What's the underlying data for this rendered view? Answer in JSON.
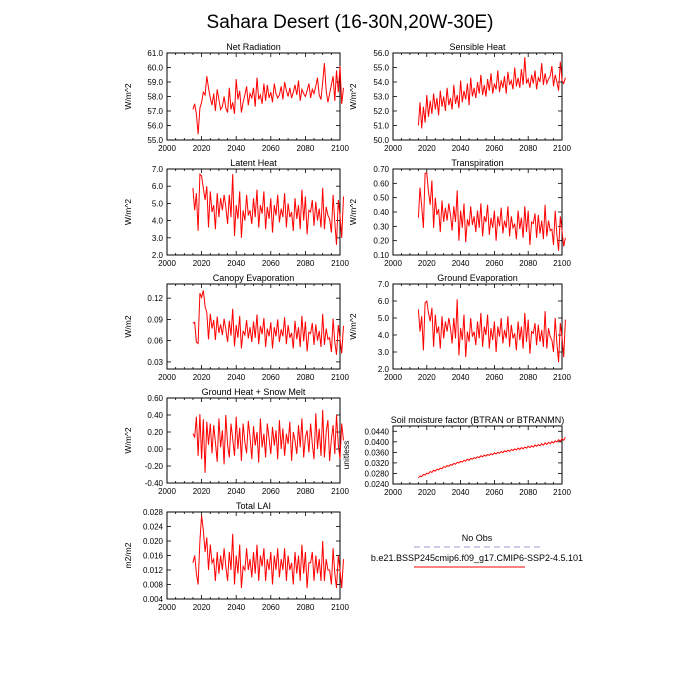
{
  "figure": {
    "title": "Sahara Desert (16-30N,20W-30E)"
  },
  "colors": {
    "series": "#ff0000",
    "obs": "#9999cc",
    "axes": "#000000"
  },
  "legend": {
    "obs_label": "No Obs",
    "model_label": "b.e21.BSSP245cmip6.f09_g17.CMIP6-SSP2-4.5.101"
  },
  "chart_data": [
    {
      "type": "line",
      "title": "Net Radiation",
      "ylabel": "W/m^2",
      "xlim": [
        2000,
        2100
      ],
      "ylim": [
        55.0,
        61.0
      ],
      "xticks": [
        "2000",
        "2020",
        "2040",
        "2060",
        "2080",
        "2100"
      ],
      "yticks": [
        "55.0",
        "56.0",
        "57.0",
        "58.0",
        "59.0",
        "60.0",
        "61.0"
      ],
      "start_year": 2015,
      "series": [
        {
          "values": [
            57.1,
            57.5,
            56.8,
            55.4,
            57.2,
            57.6,
            58.3,
            58.1,
            59.4,
            58.6,
            57.9,
            57.4,
            58.2,
            57.0,
            58.5,
            57.8,
            57.1,
            57.3,
            58.0,
            57.2,
            56.9,
            58.6,
            57.1,
            57.6,
            56.8,
            59.2,
            57.8,
            58.4,
            56.9,
            57.6,
            58.1,
            58.7,
            57.4,
            58.2,
            57.9,
            58.6,
            57.3,
            59.3,
            57.8,
            58.1,
            57.5,
            58.9,
            57.7,
            58.8,
            57.9,
            58.3,
            57.6,
            58.9,
            58.2,
            57.9,
            58.1,
            58.7,
            57.8,
            59.0,
            58.4,
            58.0,
            58.6,
            57.9,
            58.3,
            58.8,
            58.1,
            59.1,
            57.7,
            58.5,
            58.2,
            58.0,
            58.4,
            58.9,
            57.9,
            58.5,
            58.2,
            58.7,
            59.3,
            58.1,
            57.8,
            59.0,
            60.3,
            58.4,
            57.6,
            58.2,
            58.8,
            59.4,
            57.7,
            59.8,
            58.3,
            60.1,
            57.5,
            58.6
          ]
        }
      ]
    },
    {
      "type": "line",
      "title": "Sensible Heat",
      "ylabel": "W/m^2",
      "xlim": [
        2000,
        2100
      ],
      "ylim": [
        50.0,
        56.0
      ],
      "xticks": [
        "2000",
        "2020",
        "2040",
        "2060",
        "2080",
        "2100"
      ],
      "yticks": [
        "50.0",
        "51.0",
        "52.0",
        "53.0",
        "54.0",
        "55.0",
        "56.0"
      ],
      "start_year": 2015,
      "series": [
        {
          "values": [
            51.0,
            52.6,
            50.8,
            52.3,
            51.2,
            53.1,
            51.6,
            52.7,
            51.8,
            53.2,
            52.1,
            52.9,
            51.7,
            53.4,
            52.3,
            53.0,
            52.0,
            53.6,
            52.4,
            52.9,
            52.1,
            53.8,
            52.5,
            53.1,
            52.2,
            54.1,
            52.6,
            53.4,
            52.8,
            53.9,
            52.4,
            54.3,
            53.0,
            53.6,
            52.9,
            54.0,
            53.2,
            54.5,
            53.1,
            53.8,
            53.0,
            54.2,
            53.4,
            54.6,
            53.2,
            53.9,
            53.5,
            54.8,
            53.3,
            54.1,
            53.6,
            54.4,
            53.2,
            54.7,
            53.8,
            54.1,
            53.5,
            55.0,
            53.7,
            54.3,
            53.6,
            54.9,
            53.8,
            55.7,
            53.9,
            54.2,
            53.6,
            54.5,
            53.9,
            54.8,
            53.5,
            54.3,
            54.0,
            55.3,
            53.8,
            54.6,
            53.9,
            54.2,
            54.4,
            55.1,
            53.7,
            54.5,
            54.0,
            53.4,
            55.4,
            54.1,
            53.9,
            54.3
          ]
        }
      ]
    },
    {
      "type": "line",
      "title": "Latent Heat",
      "ylabel": "W/m^2",
      "xlim": [
        2000,
        2100
      ],
      "ylim": [
        2.0,
        7.0
      ],
      "xticks": [
        "2000",
        "2020",
        "2040",
        "2060",
        "2080",
        "2100"
      ],
      "yticks": [
        "2.0",
        "3.0",
        "4.0",
        "5.0",
        "6.0",
        "7.0"
      ],
      "start_year": 2015,
      "series": [
        {
          "values": [
            5.9,
            4.6,
            5.6,
            3.4,
            6.7,
            6.6,
            5.9,
            5.2,
            6.0,
            3.6,
            5.7,
            4.5,
            4.9,
            3.5,
            5.6,
            4.2,
            5.3,
            4.6,
            5.5,
            4.8,
            3.8,
            5.5,
            4.2,
            6.7,
            3.1,
            4.9,
            4.1,
            5.7,
            3.0,
            4.6,
            4.0,
            5.5,
            4.3,
            4.6,
            3.8,
            5.3,
            4.2,
            5.8,
            3.6,
            4.9,
            4.4,
            5.7,
            3.5,
            4.8,
            4.1,
            5.3,
            3.3,
            4.9,
            4.3,
            5.5,
            3.9,
            4.7,
            4.2,
            5.6,
            3.6,
            5.0,
            4.2,
            4.5,
            3.4,
            5.3,
            4.1,
            4.9,
            3.5,
            5.8,
            4.0,
            5.4,
            3.2,
            4.6,
            4.5,
            5.2,
            3.7,
            5.1,
            4.0,
            4.7,
            3.6,
            5.9,
            3.5,
            4.8,
            4.3,
            4.1,
            3.3,
            5.5,
            3.9,
            2.6,
            5.2,
            4.3,
            3.0,
            5.4
          ]
        }
      ]
    },
    {
      "type": "line",
      "title": "Transpiration",
      "ylabel": "W/m^2",
      "xlim": [
        2000,
        2100
      ],
      "ylim": [
        0.1,
        0.7
      ],
      "xticks": [
        "2000",
        "2020",
        "2040",
        "2060",
        "2080",
        "2100"
      ],
      "yticks": [
        "0.10",
        "0.20",
        "0.30",
        "0.40",
        "0.50",
        "0.60",
        "0.70"
      ],
      "start_year": 2015,
      "series": [
        {
          "values": [
            0.36,
            0.57,
            0.44,
            0.29,
            0.67,
            0.67,
            0.54,
            0.45,
            0.62,
            0.29,
            0.5,
            0.38,
            0.42,
            0.26,
            0.48,
            0.33,
            0.43,
            0.34,
            0.46,
            0.38,
            0.27,
            0.44,
            0.33,
            0.55,
            0.2,
            0.41,
            0.29,
            0.46,
            0.19,
            0.35,
            0.3,
            0.44,
            0.31,
            0.37,
            0.26,
            0.41,
            0.29,
            0.46,
            0.23,
            0.37,
            0.33,
            0.45,
            0.24,
            0.36,
            0.29,
            0.41,
            0.2,
            0.37,
            0.3,
            0.43,
            0.25,
            0.34,
            0.29,
            0.44,
            0.23,
            0.37,
            0.29,
            0.32,
            0.21,
            0.41,
            0.28,
            0.36,
            0.22,
            0.44,
            0.26,
            0.41,
            0.17,
            0.33,
            0.32,
            0.39,
            0.22,
            0.38,
            0.25,
            0.34,
            0.21,
            0.45,
            0.23,
            0.34,
            0.27,
            0.28,
            0.17,
            0.41,
            0.24,
            0.13,
            0.37,
            0.27,
            0.16,
            0.22
          ]
        }
      ]
    },
    {
      "type": "line",
      "title": "Canopy Evaporation",
      "ylabel": "W/m2",
      "xlim": [
        2000,
        2100
      ],
      "ylim": [
        0.02,
        0.14
      ],
      "xticks": [
        "2000",
        "2020",
        "2040",
        "2060",
        "2080",
        "2100"
      ],
      "yticks": [
        "0.03",
        "0.06",
        "0.09",
        "0.12"
      ],
      "start_year": 2015,
      "series": [
        {
          "values": [
            0.085,
            0.086,
            0.058,
            0.056,
            0.127,
            0.121,
            0.131,
            0.108,
            0.1,
            0.062,
            0.098,
            0.077,
            0.089,
            0.061,
            0.094,
            0.071,
            0.083,
            0.068,
            0.091,
            0.076,
            0.058,
            0.088,
            0.067,
            0.105,
            0.052,
            0.082,
            0.064,
            0.095,
            0.049,
            0.074,
            0.068,
            0.089,
            0.063,
            0.079,
            0.058,
            0.087,
            0.064,
            0.097,
            0.055,
            0.081,
            0.069,
            0.092,
            0.051,
            0.077,
            0.066,
            0.086,
            0.049,
            0.079,
            0.066,
            0.09,
            0.058,
            0.076,
            0.066,
            0.093,
            0.055,
            0.082,
            0.064,
            0.071,
            0.049,
            0.088,
            0.062,
            0.079,
            0.051,
            0.095,
            0.059,
            0.087,
            0.045,
            0.072,
            0.07,
            0.085,
            0.054,
            0.083,
            0.06,
            0.074,
            0.051,
            0.098,
            0.054,
            0.077,
            0.062,
            0.064,
            0.044,
            0.091,
            0.058,
            0.04,
            0.082,
            0.063,
            0.042,
            0.081
          ]
        }
      ]
    },
    {
      "type": "line",
      "title": "Ground Evaporation",
      "ylabel": "W/m^2",
      "xlim": [
        2000,
        2100
      ],
      "ylim": [
        2.0,
        7.0
      ],
      "xticks": [
        "2000",
        "2020",
        "2040",
        "2060",
        "2080",
        "2100"
      ],
      "yticks": [
        "2.0",
        "3.0",
        "4.0",
        "5.0",
        "6.0",
        "7.0"
      ],
      "start_year": 2015,
      "series": [
        {
          "values": [
            5.5,
            4.2,
            5.1,
            3.1,
            5.9,
            6.0,
            5.3,
            4.8,
            5.6,
            3.3,
            5.2,
            4.1,
            4.5,
            3.2,
            5.1,
            3.8,
            4.8,
            4.2,
            5.0,
            4.4,
            3.5,
            5.0,
            3.8,
            6.1,
            2.8,
            4.4,
            3.7,
            5.2,
            2.7,
            4.2,
            3.6,
            5.0,
            3.9,
            4.2,
            3.4,
            4.8,
            3.8,
            5.3,
            3.3,
            4.5,
            4.0,
            5.2,
            3.2,
            4.4,
            3.7,
            4.8,
            3.0,
            4.5,
            3.9,
            5.0,
            3.5,
            4.3,
            3.8,
            5.1,
            3.3,
            4.6,
            3.8,
            4.1,
            3.1,
            4.8,
            3.7,
            4.5,
            3.2,
            5.3,
            3.6,
            4.9,
            2.9,
            4.2,
            4.1,
            4.7,
            3.4,
            4.6,
            3.6,
            4.3,
            3.3,
            5.4,
            3.2,
            4.4,
            3.9,
            3.7,
            3.0,
            5.0,
            3.5,
            2.4,
            4.7,
            3.9,
            2.7,
            4.9
          ]
        }
      ]
    },
    {
      "type": "line",
      "title": "Ground Heat + Snow Melt",
      "ylabel": "W/m^2",
      "xlim": [
        2000,
        2100
      ],
      "ylim": [
        -0.4,
        0.6
      ],
      "xticks": [
        "2000",
        "2020",
        "2040",
        "2060",
        "2080",
        "2100"
      ],
      "yticks": [
        "-0.40",
        "-0.20",
        "0.00",
        "0.20",
        "0.40",
        "0.60"
      ],
      "start_year": 2015,
      "series": [
        {
          "values": [
            0.18,
            0.14,
            0.38,
            -0.08,
            0.41,
            -0.12,
            0.35,
            -0.28,
            0.32,
            0.05,
            0.3,
            -0.05,
            0.28,
            0.08,
            -0.15,
            0.36,
            0.02,
            0.22,
            -0.18,
            0.4,
            0.05,
            -0.1,
            0.3,
            0.12,
            -0.08,
            0.38,
            0.0,
            0.25,
            -0.14,
            0.3,
            0.08,
            -0.05,
            0.33,
            0.15,
            -0.12,
            0.27,
            0.04,
            0.2,
            -0.16,
            0.36,
            0.02,
            0.18,
            -0.1,
            0.3,
            0.12,
            -0.06,
            0.26,
            0.04,
            0.22,
            -0.12,
            0.34,
            0.0,
            0.24,
            -0.08,
            0.18,
            0.06,
            0.32,
            -0.14,
            0.2,
            0.1,
            -0.06,
            0.28,
            0.02,
            0.36,
            -0.1,
            0.14,
            0.22,
            -0.04,
            0.3,
            0.06,
            -0.12,
            0.42,
            0.0,
            0.24,
            -0.08,
            0.46,
            -0.1,
            0.2,
            0.34,
            -0.14,
            0.12,
            0.28,
            -0.06,
            0.4,
            0.05,
            -0.12,
            0.3,
            0.1
          ]
        }
      ]
    },
    {
      "type": "line",
      "title": "Soil moisture factor (BTRAN or BTRANMN)",
      "ylabel": "unitless",
      "xlim": [
        2000,
        2100
      ],
      "ylim": [
        0.024,
        0.046
      ],
      "xticks": [
        "2000",
        "2020",
        "2040",
        "2060",
        "2080",
        "2100"
      ],
      "yticks": [
        "0.0240",
        "0.0280",
        "0.0320",
        "0.0360",
        "0.0400",
        "0.0440"
      ],
      "start_year": 2015,
      "series": [
        {
          "values": [
            0.0263,
            0.027,
            0.0268,
            0.0276,
            0.0274,
            0.0281,
            0.0279,
            0.0287,
            0.0284,
            0.0292,
            0.0289,
            0.0296,
            0.0294,
            0.03,
            0.0298,
            0.0306,
            0.0303,
            0.031,
            0.0307,
            0.0314,
            0.0311,
            0.0318,
            0.0315,
            0.0322,
            0.032,
            0.0326,
            0.0323,
            0.033,
            0.0327,
            0.0334,
            0.033,
            0.0337,
            0.0334,
            0.034,
            0.0337,
            0.0343,
            0.034,
            0.0347,
            0.0343,
            0.035,
            0.0346,
            0.0352,
            0.0349,
            0.0355,
            0.0351,
            0.0358,
            0.0354,
            0.036,
            0.0357,
            0.0363,
            0.0359,
            0.0366,
            0.0362,
            0.0368,
            0.0364,
            0.0371,
            0.0367,
            0.0373,
            0.0369,
            0.0376,
            0.0371,
            0.0378,
            0.0374,
            0.038,
            0.0376,
            0.0383,
            0.0378,
            0.0385,
            0.038,
            0.0388,
            0.0383,
            0.039,
            0.0385,
            0.0393,
            0.0387,
            0.0396,
            0.039,
            0.0398,
            0.0393,
            0.0401,
            0.0396,
            0.0404,
            0.0399,
            0.0408,
            0.0402,
            0.0412,
            0.0406,
            0.0417
          ]
        }
      ]
    },
    {
      "type": "line",
      "title": "Total LAI",
      "ylabel": "m2/m2",
      "xlim": [
        2000,
        2100
      ],
      "ylim": [
        0.004,
        0.028
      ],
      "xticks": [
        "2000",
        "2020",
        "2040",
        "2060",
        "2080",
        "2100"
      ],
      "yticks": [
        "0.004",
        "0.008",
        "0.012",
        "0.016",
        "0.020",
        "0.024",
        "0.028"
      ],
      "start_year": 2015,
      "series": [
        {
          "values": [
            0.014,
            0.016,
            0.011,
            0.008,
            0.02,
            0.027,
            0.023,
            0.017,
            0.021,
            0.012,
            0.019,
            0.014,
            0.015,
            0.009,
            0.017,
            0.011,
            0.016,
            0.012,
            0.018,
            0.013,
            0.009,
            0.017,
            0.012,
            0.022,
            0.008,
            0.016,
            0.011,
            0.019,
            0.007,
            0.013,
            0.012,
            0.018,
            0.012,
            0.015,
            0.01,
            0.017,
            0.011,
            0.019,
            0.009,
            0.016,
            0.013,
            0.018,
            0.009,
            0.015,
            0.012,
            0.017,
            0.008,
            0.016,
            0.012,
            0.018,
            0.01,
            0.015,
            0.012,
            0.018,
            0.009,
            0.016,
            0.012,
            0.014,
            0.008,
            0.017,
            0.011,
            0.016,
            0.009,
            0.019,
            0.011,
            0.017,
            0.007,
            0.014,
            0.014,
            0.017,
            0.009,
            0.016,
            0.011,
            0.015,
            0.009,
            0.02,
            0.009,
            0.015,
            0.012,
            0.012,
            0.008,
            0.018,
            0.011,
            0.007,
            0.016,
            0.012,
            0.007,
            0.015
          ]
        }
      ]
    }
  ]
}
